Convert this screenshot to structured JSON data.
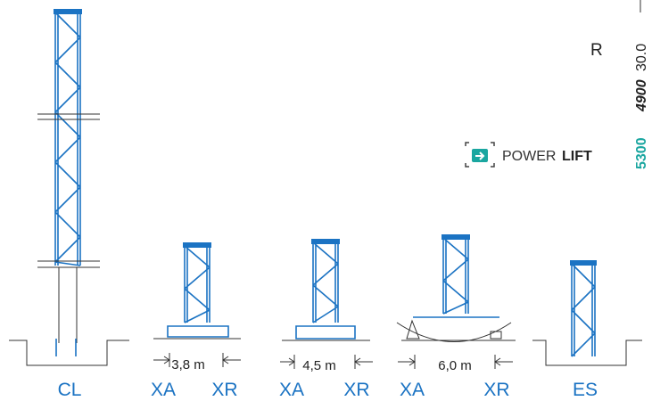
{
  "brand": {
    "regular": "POWER",
    "bold": "LIFT"
  },
  "side": {
    "letter": "R",
    "value": "30.0",
    "model_a": "4900",
    "model_b": "5300"
  },
  "labels": [
    "CL",
    "XA",
    "XR",
    "XA",
    "XR",
    "XA",
    "XR",
    "ES"
  ],
  "dimensions": [
    "3,8 m",
    "4,5 m",
    "6,0 m"
  ]
}
